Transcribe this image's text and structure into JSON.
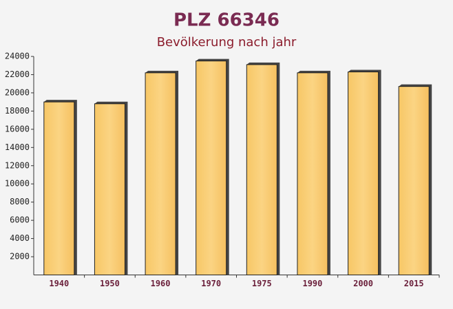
{
  "chart_data": {
    "type": "bar",
    "title": "PLZ 66346",
    "subtitle": "Bevölkerung nach jahr",
    "categories": [
      "1940",
      "1950",
      "1960",
      "1970",
      "1975",
      "1990",
      "2000",
      "2015"
    ],
    "values": [
      19000,
      18800,
      22200,
      23500,
      23100,
      22200,
      22300,
      20700
    ],
    "color": "#f9c86a",
    "ylim": [
      0,
      24000
    ],
    "yticks": [
      2000,
      4000,
      6000,
      8000,
      10000,
      12000,
      14000,
      16000,
      18000,
      20000,
      22000,
      24000
    ]
  }
}
